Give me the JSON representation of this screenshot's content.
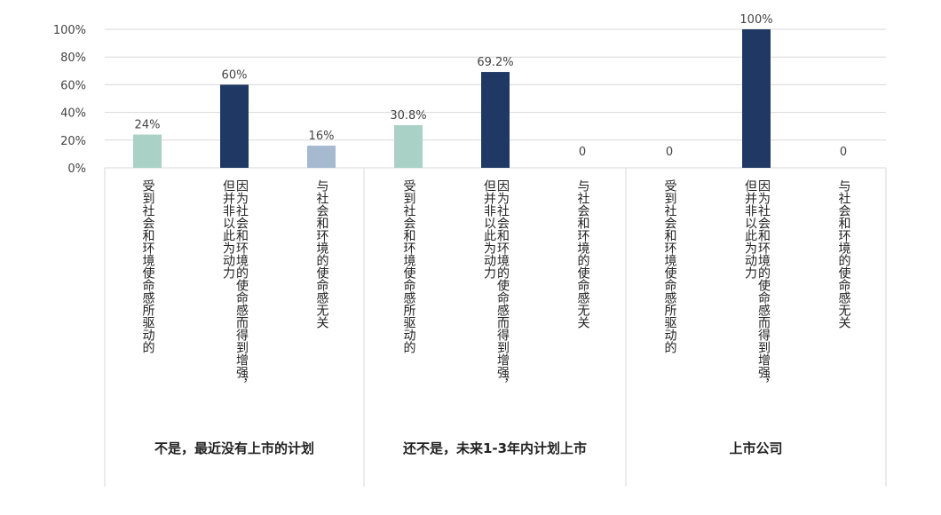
{
  "chart_data": {
    "type": "bar",
    "ylim": [
      0,
      100
    ],
    "yticks": [
      "0%",
      "20%",
      "40%",
      "60%",
      "80%",
      "100%"
    ],
    "grid": true,
    "groups": [
      {
        "name": "不是，最近没有上市的计划",
        "bars": [
          {
            "category": "受到社会和环境使命感所驱动的",
            "value": 24,
            "label": "24%",
            "color": "#a9d1c5"
          },
          {
            "category": "因为社会和环境的使命感而得到增强，但并非以此为动力",
            "value": 60,
            "label": "60%",
            "color": "#1f3864"
          },
          {
            "category": "与社会和环境的使命感无关",
            "value": 16,
            "label": "16%",
            "color": "#a6b9cf"
          }
        ]
      },
      {
        "name": "还不是，未来1-3年内计划上市",
        "bars": [
          {
            "category": "受到社会和环境使命感所驱动的",
            "value": 30.8,
            "label": "30.8%",
            "color": "#a9d1c5"
          },
          {
            "category": "因为社会和环境的使命感而得到增强，但并非以此为动力",
            "value": 69.2,
            "label": "69.2%",
            "color": "#1f3864"
          },
          {
            "category": "与社会和环境的使命感无关",
            "value": 0,
            "label": "0",
            "color": "#a6b9cf"
          }
        ]
      },
      {
        "name": "上市公司",
        "bars": [
          {
            "category": "受到社会和环境使命感所驱动的",
            "value": 0,
            "label": "0",
            "color": "#a9d1c5"
          },
          {
            "category": "因为社会和环境的使命感而得到增强，但并非以此为动力",
            "value": 100,
            "label": "100%",
            "color": "#1f3864"
          },
          {
            "category": "与社会和环境的使命感无关",
            "value": 0,
            "label": "0",
            "color": "#a6b9cf"
          }
        ]
      }
    ]
  }
}
